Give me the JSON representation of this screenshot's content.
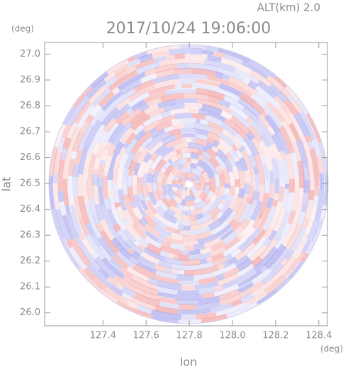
{
  "header": {
    "altitude": "ALT(km) 2.0",
    "timestamp": "2017/10/24 19:06:00"
  },
  "chart_data": {
    "type": "radar-ppi",
    "x_label": "lon",
    "y_label": "lat",
    "x_unit": "(deg)",
    "y_unit": "(deg)",
    "xlim": [
      127.13,
      128.44
    ],
    "ylim": [
      25.95,
      27.045
    ],
    "xticks": [
      127.4,
      127.6,
      127.8,
      {
        "value": 128,
        "label": "128.0"
      },
      128.2,
      128.4
    ],
    "yticks": [
      {
        "value": 26,
        "label": "26.0"
      },
      26.1,
      26.2,
      26.3,
      26.4,
      26.5,
      26.6,
      26.7,
      26.8,
      26.9,
      {
        "value": 27,
        "label": "27.0"
      }
    ]
  }
}
